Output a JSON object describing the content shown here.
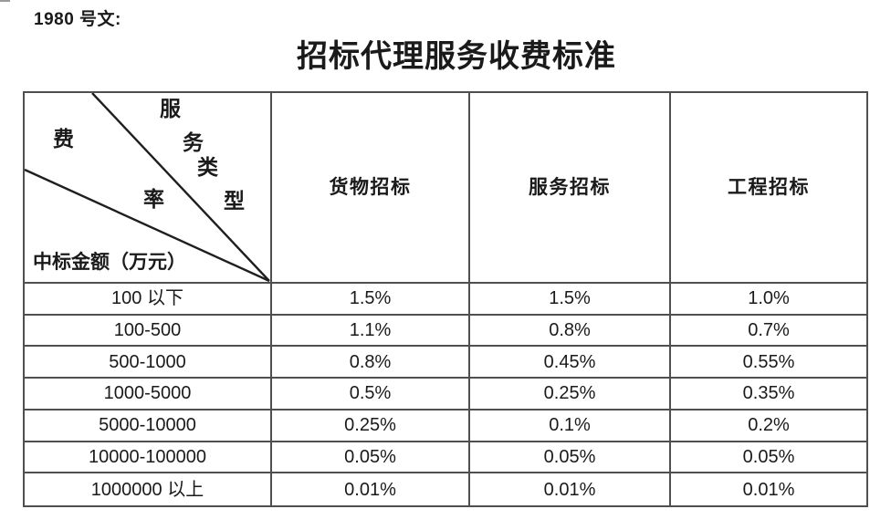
{
  "page": {
    "doc_ref": "1980 号文:",
    "title": "招标代理服务收费标准"
  },
  "table": {
    "corner": {
      "service_type_label": "服务类型",
      "service_type_chars": [
        "服",
        "务",
        "类",
        "型"
      ],
      "fee_rate_label": "费率",
      "fee_rate_chars": [
        "费",
        "率"
      ],
      "row_axis_label": "中标金额（万元）"
    },
    "columns": [
      "货物招标",
      "服务招标",
      "工程招标"
    ],
    "rows": [
      {
        "range": "100 以下",
        "values": [
          "1.5%",
          "1.5%",
          "1.0%"
        ]
      },
      {
        "range": "100-500",
        "values": [
          "1.1%",
          "0.8%",
          "0.7%"
        ]
      },
      {
        "range": "500-1000",
        "values": [
          "0.8%",
          "0.45%",
          "0.55%"
        ]
      },
      {
        "range": "1000-5000",
        "values": [
          "0.5%",
          "0.25%",
          "0.35%"
        ]
      },
      {
        "range": "5000-10000",
        "values": [
          "0.25%",
          "0.1%",
          "0.2%"
        ]
      },
      {
        "range": "10000-100000",
        "values": [
          "0.05%",
          "0.05%",
          "0.05%"
        ]
      },
      {
        "range": "1000000 以上",
        "values": [
          "0.01%",
          "0.01%",
          "0.01%"
        ]
      }
    ]
  },
  "colors": {
    "table_border": "#4f4f4f",
    "diagonal_line": "#1f1f1f",
    "text": "#1a1a1a",
    "background": "#ffffff"
  }
}
